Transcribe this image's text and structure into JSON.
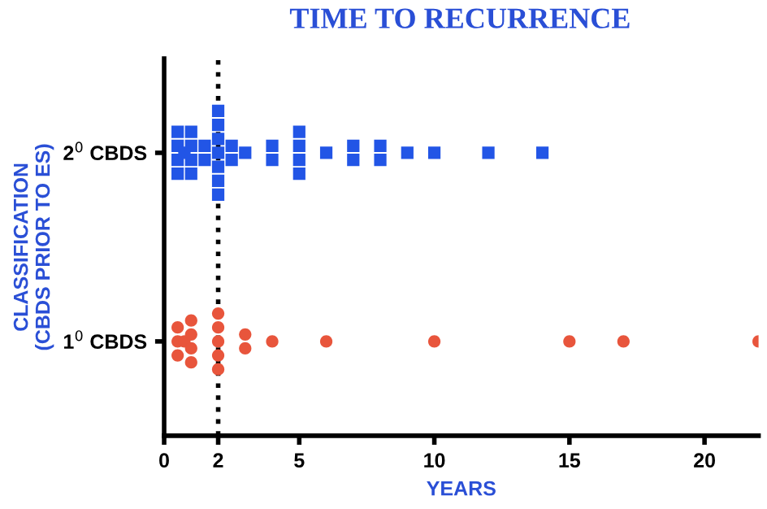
{
  "chart_data": {
    "type": "scatter",
    "orientation": "horizontal",
    "title": "TIME TO RECURRENCE",
    "xlabel": "YEARS",
    "ylabel": "CLASSIFICATION\n(CBDS PRIOR TO ES)",
    "categories": [
      "2$^{0}$ CBDS",
      "1$^{0}$ CBDS"
    ],
    "xlim": [
      0,
      22
    ],
    "xticks": [
      0,
      2,
      5,
      10,
      15,
      20
    ],
    "grid": false,
    "legend": false,
    "ref_lines": [
      {
        "axis": "x",
        "value": 2,
        "label": null,
        "color": "#000000",
        "line_style": "dotted"
      }
    ],
    "series": [
      {
        "color": "#2255e6",
        "marker": "square",
        "x": [
          "2$^{0}$ CBDS",
          "2$^{0}$ CBDS",
          "2$^{0}$ CBDS",
          "2$^{0}$ CBDS",
          "2$^{0}$ CBDS",
          "2$^{0}$ CBDS",
          "2$^{0}$ CBDS",
          "2$^{0}$ CBDS",
          "2$^{0}$ CBDS",
          "2$^{0}$ CBDS",
          "2$^{0}$ CBDS",
          "2$^{0}$ CBDS",
          "2$^{0}$ CBDS",
          "2$^{0}$ CBDS",
          "2$^{0}$ CBDS",
          "2$^{0}$ CBDS",
          "2$^{0}$ CBDS",
          "2$^{0}$ CBDS",
          "2$^{0}$ CBDS",
          "2$^{0}$ CBDS",
          "2$^{0}$ CBDS",
          "2$^{0}$ CBDS",
          "2$^{0}$ CBDS",
          "2$^{0}$ CBDS",
          "2$^{0}$ CBDS",
          "2$^{0}$ CBDS",
          "2$^{0}$ CBDS",
          "2$^{0}$ CBDS",
          "2$^{0}$ CBDS",
          "2$^{0}$ CBDS",
          "2$^{0}$ CBDS",
          "2$^{0}$ CBDS",
          "2$^{0}$ CBDS",
          "2$^{0}$ CBDS",
          "2$^{0}$ CBDS",
          "2$^{0}$ CBDS"
        ],
        "values": [
          0.5,
          0.5,
          0.5,
          0.5,
          0.75,
          1,
          1,
          1,
          1,
          1.5,
          1.5,
          2,
          2,
          2,
          2,
          2,
          2,
          2,
          2.5,
          2.5,
          3,
          4,
          4,
          5,
          5,
          5,
          5,
          6,
          7,
          7,
          8,
          8,
          9,
          10,
          12,
          14
        ]
      },
      {
        "color": "#e8553c",
        "marker": "circle",
        "x": [
          "1$^{0}$ CBDS",
          "1$^{0}$ CBDS",
          "1$^{0}$ CBDS",
          "1$^{0}$ CBDS",
          "1$^{0}$ CBDS",
          "1$^{0}$ CBDS",
          "1$^{0}$ CBDS",
          "1$^{0}$ CBDS",
          "1$^{0}$ CBDS",
          "1$^{0}$ CBDS",
          "1$^{0}$ CBDS",
          "1$^{0}$ CBDS",
          "1$^{0}$ CBDS",
          "1$^{0}$ CBDS",
          "1$^{0}$ CBDS",
          "1$^{0}$ CBDS",
          "1$^{0}$ CBDS",
          "1$^{0}$ CBDS",
          "1$^{0}$ CBDS",
          "1$^{0}$ CBDS",
          "1$^{0}$ CBDS"
        ],
        "values": [
          0.5,
          0.5,
          0.5,
          0.75,
          1,
          1,
          1,
          1,
          2,
          2,
          2,
          2,
          2,
          3,
          3,
          4,
          6,
          10,
          15,
          17,
          22
        ]
      }
    ]
  }
}
